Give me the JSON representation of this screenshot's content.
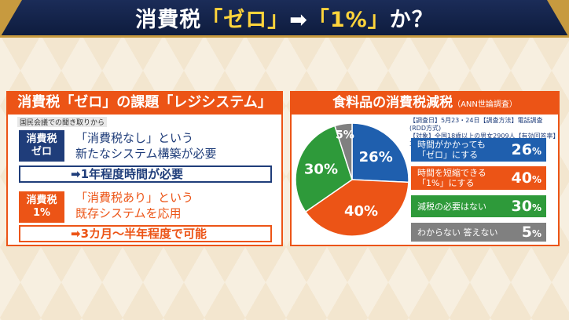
{
  "header": {
    "title_pre": "消費税",
    "title_hl1": "「ゼロ」",
    "title_arrow": "➡",
    "title_hl2": "「1%」",
    "title_post": "か？"
  },
  "left_panel": {
    "banner": "消費税「ゼロ」の課題「レジシステム」",
    "note": "国民会議での聞き取りから",
    "zero": {
      "tag_line1": "消費税",
      "tag_line2": "ゼロ",
      "desc_line1": "「消費税なし」という",
      "desc_line2": "新たなシステム構築が必要",
      "result": "➡1年程度時間が必要"
    },
    "one": {
      "tag_line1": "消費税",
      "tag_line2": "1%",
      "desc_line1": "「消費税あり」という",
      "desc_line2": "既存システムを応用",
      "result": "➡3カ月～半年程度で可能"
    }
  },
  "right_panel": {
    "banner": "食料品の消費税減税",
    "banner_sub": "（ANN世論調査）",
    "survey_line1": "【調査日】5月23・24日【調査方法】電話調査(RDD方式)",
    "survey_line2": "【対象】全国18歳以上の男女2909人【有効回答率】35.5%"
  },
  "chart_data": {
    "type": "pie",
    "categories": [
      "時間がかかっても「ゼロ」にする",
      "時間を短縮できる「1%」にする",
      "減税の必要はない",
      "わからない 答えない"
    ],
    "values": [
      26,
      40,
      30,
      5
    ],
    "labels": [
      "26%",
      "40%",
      "30%",
      "5%"
    ],
    "colors": [
      "#1f5fae",
      "#ec5416",
      "#2e9a3a",
      "#808080"
    ]
  },
  "legend": [
    {
      "line1": "時間がかかっても",
      "line2": "「ゼロ」にする",
      "pct": "26",
      "unit": "%"
    },
    {
      "line1": "時間を短縮できる",
      "line2": "「1%」にする",
      "pct": "40",
      "unit": "%"
    },
    {
      "line1": "減税の必要はない",
      "line2": "",
      "pct": "30",
      "unit": "%"
    },
    {
      "line1": "わからない 答えない",
      "line2": "",
      "pct": "5",
      "unit": "%"
    }
  ]
}
